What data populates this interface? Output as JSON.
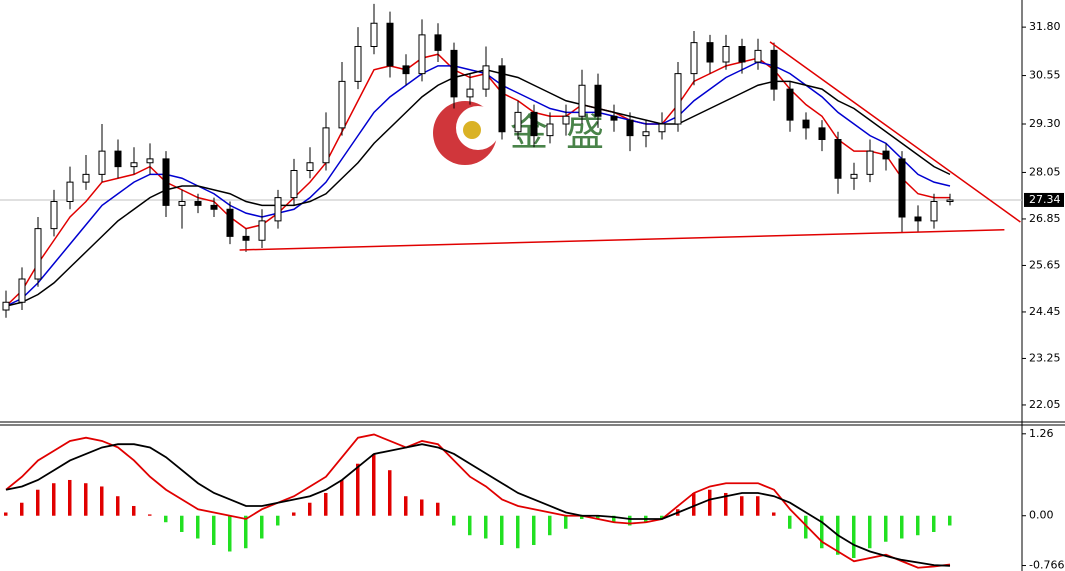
{
  "chart_data": [
    {
      "type": "candlestick",
      "watermark": "金盛",
      "ylim": [
        21.61,
        32.5
      ],
      "yticks": [
        {
          "value": 31.8,
          "label": "31.80"
        },
        {
          "value": 30.55,
          "label": "30.55"
        },
        {
          "value": 29.3,
          "label": "29.30"
        },
        {
          "value": 28.05,
          "label": "28.05"
        },
        {
          "value": 26.85,
          "label": "26.85"
        },
        {
          "value": 25.65,
          "label": "25.65"
        },
        {
          "value": 24.45,
          "label": "24.45"
        },
        {
          "value": 23.25,
          "label": "23.25"
        },
        {
          "value": 22.05,
          "label": "22.05"
        }
      ],
      "last_price": 27.34,
      "up_color": "#ffffff",
      "down_color": "#000000",
      "open": [
        24.5,
        24.7,
        25.3,
        26.6,
        27.3,
        27.8,
        28.0,
        28.6,
        28.2,
        28.3,
        28.4,
        27.2,
        27.3,
        27.2,
        27.1,
        26.4,
        26.3,
        26.8,
        27.4,
        28.1,
        28.3,
        29.2,
        30.4,
        31.3,
        31.9,
        30.8,
        30.6,
        31.6,
        31.2,
        30.0,
        30.2,
        30.8,
        29.1,
        29.6,
        29.0,
        29.3,
        29.5,
        30.3,
        29.5,
        29.4,
        29.0,
        29.1,
        29.3,
        30.6,
        31.4,
        30.9,
        31.3,
        30.9,
        31.2,
        30.2,
        29.4,
        29.2,
        28.9,
        27.9,
        28.0,
        28.6,
        28.4,
        26.9,
        26.8,
        27.3
      ],
      "high": [
        25.0,
        25.6,
        26.9,
        27.6,
        28.2,
        28.5,
        29.3,
        28.9,
        28.7,
        28.8,
        28.6,
        27.6,
        27.5,
        27.4,
        27.3,
        26.6,
        27.1,
        27.6,
        28.4,
        28.7,
        29.6,
        30.9,
        31.8,
        32.4,
        32.2,
        31.1,
        32.0,
        31.9,
        31.4,
        30.6,
        31.3,
        31.0,
        29.9,
        29.8,
        29.6,
        29.8,
        30.7,
        30.6,
        29.8,
        29.6,
        29.4,
        29.6,
        30.9,
        31.7,
        31.6,
        31.6,
        31.5,
        31.5,
        31.4,
        30.4,
        29.6,
        29.4,
        29.1,
        28.3,
        28.9,
        28.8,
        28.6,
        27.2,
        27.5,
        27.5
      ],
      "low": [
        24.3,
        24.5,
        25.1,
        26.4,
        27.1,
        27.6,
        27.8,
        27.9,
        28.0,
        28.0,
        26.9,
        26.6,
        27.0,
        26.9,
        26.2,
        26.0,
        26.1,
        26.6,
        27.2,
        27.9,
        28.1,
        29.0,
        30.2,
        31.1,
        30.5,
        30.3,
        30.4,
        30.9,
        29.7,
        29.8,
        30.0,
        28.9,
        28.9,
        28.7,
        28.8,
        29.0,
        29.3,
        29.2,
        29.1,
        28.6,
        28.7,
        28.9,
        29.1,
        30.3,
        30.6,
        30.7,
        30.6,
        30.7,
        29.9,
        29.1,
        28.9,
        28.6,
        27.5,
        27.6,
        27.8,
        28.1,
        26.5,
        26.5,
        26.6,
        27.2
      ],
      "close": [
        24.7,
        25.3,
        26.6,
        27.3,
        27.8,
        28.0,
        28.6,
        28.2,
        28.3,
        28.4,
        27.2,
        27.3,
        27.2,
        27.1,
        26.4,
        26.3,
        26.8,
        27.4,
        28.1,
        28.3,
        29.2,
        30.4,
        31.3,
        31.9,
        30.8,
        30.6,
        31.6,
        31.2,
        30.0,
        30.2,
        30.8,
        29.1,
        29.6,
        29.0,
        29.3,
        29.5,
        30.3,
        29.5,
        29.4,
        29.0,
        29.1,
        29.3,
        30.6,
        31.4,
        30.9,
        31.3,
        30.9,
        31.2,
        30.2,
        29.4,
        29.2,
        28.9,
        27.9,
        28.0,
        28.6,
        28.4,
        26.9,
        26.8,
        27.3,
        27.34
      ],
      "series": [
        {
          "color": "#e00000",
          "values": [
            24.6,
            25.0,
            25.7,
            26.3,
            26.9,
            27.3,
            27.8,
            27.9,
            28.0,
            28.2,
            27.8,
            27.6,
            27.4,
            27.3,
            26.9,
            26.6,
            26.7,
            27.0,
            27.4,
            27.8,
            28.3,
            29.1,
            29.9,
            30.7,
            30.8,
            30.7,
            31.0,
            31.1,
            30.7,
            30.5,
            30.6,
            30.1,
            29.9,
            29.6,
            29.5,
            29.5,
            29.8,
            29.7,
            29.6,
            29.4,
            29.3,
            29.3,
            29.8,
            30.4,
            30.6,
            30.8,
            30.9,
            31.0,
            30.7,
            30.2,
            29.8,
            29.5,
            28.9,
            28.6,
            28.6,
            28.5,
            27.9,
            27.5,
            27.4,
            27.4
          ]
        },
        {
          "color": "#0000d0",
          "values": [
            24.6,
            24.8,
            25.2,
            25.7,
            26.2,
            26.7,
            27.2,
            27.5,
            27.8,
            28.0,
            28.0,
            27.9,
            27.7,
            27.5,
            27.2,
            27.0,
            26.9,
            27.0,
            27.1,
            27.4,
            27.8,
            28.4,
            29.0,
            29.6,
            30.0,
            30.3,
            30.6,
            30.8,
            30.8,
            30.7,
            30.6,
            30.3,
            30.1,
            29.9,
            29.7,
            29.6,
            29.6,
            29.6,
            29.5,
            29.4,
            29.3,
            29.3,
            29.5,
            29.9,
            30.2,
            30.5,
            30.7,
            30.9,
            30.8,
            30.6,
            30.3,
            30.0,
            29.6,
            29.3,
            29.0,
            28.8,
            28.4,
            28.0,
            27.8,
            27.7
          ]
        },
        {
          "color": "#000000",
          "values": [
            24.6,
            24.7,
            24.9,
            25.2,
            25.6,
            26.0,
            26.4,
            26.8,
            27.1,
            27.4,
            27.6,
            27.7,
            27.7,
            27.6,
            27.5,
            27.3,
            27.2,
            27.2,
            27.2,
            27.3,
            27.5,
            27.9,
            28.3,
            28.8,
            29.2,
            29.6,
            30.0,
            30.3,
            30.5,
            30.6,
            30.7,
            30.6,
            30.5,
            30.3,
            30.1,
            29.9,
            29.8,
            29.7,
            29.6,
            29.5,
            29.4,
            29.3,
            29.3,
            29.5,
            29.7,
            29.9,
            30.1,
            30.3,
            30.4,
            30.4,
            30.3,
            30.2,
            29.9,
            29.7,
            29.4,
            29.1,
            28.8,
            28.5,
            28.2,
            28.0
          ]
        }
      ],
      "trendlines": [
        {
          "color": "#e00000",
          "x": [
            14.6,
            62.4
          ],
          "values": [
            26.05,
            26.57
          ]
        },
        {
          "color": "#e00000",
          "x": [
            47.75,
            63.4
          ],
          "values": [
            31.42,
            26.77
          ]
        }
      ]
    },
    {
      "type": "macd",
      "ylim": [
        -0.85,
        1.38
      ],
      "yticks": [
        1.26,
        {
          "value": 0,
          "label": "0.00"
        },
        -0.766
      ],
      "histogram": {
        "up_color": "#e00000",
        "down_color": "#22e022",
        "values": [
          0.05,
          0.2,
          0.4,
          0.5,
          0.55,
          0.5,
          0.45,
          0.3,
          0.15,
          0.02,
          -0.1,
          -0.25,
          -0.35,
          -0.45,
          -0.55,
          -0.5,
          -0.35,
          -0.15,
          0.05,
          0.2,
          0.35,
          0.55,
          0.8,
          0.95,
          0.7,
          0.3,
          0.25,
          0.2,
          -0.15,
          -0.3,
          -0.35,
          -0.45,
          -0.5,
          -0.45,
          -0.3,
          -0.2,
          -0.05,
          -0.05,
          -0.1,
          -0.15,
          -0.1,
          -0.05,
          0.1,
          0.35,
          0.4,
          0.35,
          0.3,
          0.3,
          0.05,
          -0.2,
          -0.35,
          -0.5,
          -0.6,
          -0.65,
          -0.5,
          -0.4,
          -0.35,
          -0.3,
          -0.25,
          -0.15
        ]
      },
      "series": [
        {
          "color": "#e00000",
          "values": [
            0.4,
            0.6,
            0.85,
            1.0,
            1.15,
            1.2,
            1.15,
            1.05,
            0.85,
            0.6,
            0.4,
            0.25,
            0.1,
            0.05,
            0.0,
            -0.05,
            0.1,
            0.2,
            0.3,
            0.45,
            0.6,
            0.9,
            1.2,
            1.25,
            1.15,
            1.05,
            1.15,
            1.1,
            0.85,
            0.6,
            0.45,
            0.25,
            0.15,
            0.1,
            0.05,
            0.0,
            0.0,
            -0.05,
            -0.1,
            -0.12,
            -0.1,
            -0.05,
            0.15,
            0.35,
            0.45,
            0.5,
            0.5,
            0.5,
            0.4,
            0.1,
            -0.15,
            -0.4,
            -0.55,
            -0.7,
            -0.65,
            -0.6,
            -0.7,
            -0.8,
            -0.78,
            -0.75
          ]
        },
        {
          "color": "#000000",
          "values": [
            0.4,
            0.45,
            0.55,
            0.7,
            0.85,
            0.95,
            1.05,
            1.1,
            1.1,
            1.05,
            0.9,
            0.7,
            0.5,
            0.35,
            0.25,
            0.15,
            0.15,
            0.2,
            0.25,
            0.3,
            0.4,
            0.55,
            0.75,
            0.95,
            1.0,
            1.05,
            1.1,
            1.05,
            0.95,
            0.8,
            0.65,
            0.5,
            0.35,
            0.25,
            0.15,
            0.05,
            0.0,
            0.0,
            -0.02,
            -0.05,
            -0.05,
            -0.05,
            0.05,
            0.15,
            0.25,
            0.3,
            0.35,
            0.35,
            0.3,
            0.2,
            0.05,
            -0.1,
            -0.3,
            -0.45,
            -0.55,
            -0.62,
            -0.68,
            -0.72,
            -0.76,
            -0.77
          ]
        }
      ]
    }
  ]
}
